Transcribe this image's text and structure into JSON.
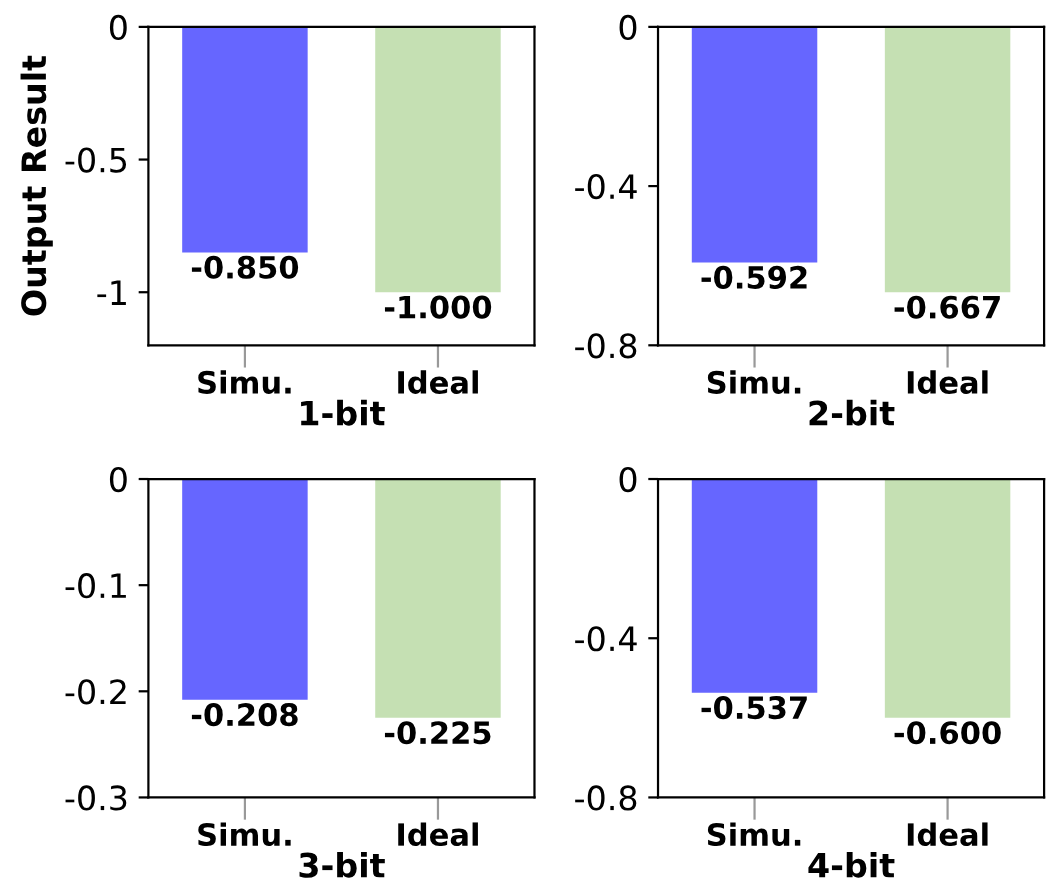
{
  "chart_data": [
    {
      "type": "bar",
      "xlabel": "1-bit",
      "ylabel": "Output Result",
      "categories": [
        "Simu.",
        "Ideal"
      ],
      "values": [
        -0.85,
        -1.0
      ],
      "colors": [
        "#6666ff",
        "#c5e0b3"
      ],
      "value_labels": [
        "-0.850",
        "-1.000"
      ],
      "ylim": [
        -1.2,
        0
      ],
      "yticks": [
        0,
        -0.5,
        -1
      ],
      "grid": false,
      "legend": false
    },
    {
      "type": "bar",
      "xlabel": "2-bit",
      "categories": [
        "Simu.",
        "Ideal"
      ],
      "values": [
        -0.592,
        -0.667
      ],
      "colors": [
        "#6666ff",
        "#c5e0b3"
      ],
      "value_labels": [
        "-0.592",
        "-0.667"
      ],
      "ylim": [
        -0.8,
        0
      ],
      "yticks": [
        0,
        -0.4,
        -0.8
      ],
      "grid": false,
      "legend": false
    },
    {
      "type": "bar",
      "xlabel": "3-bit",
      "categories": [
        "Simu.",
        "Ideal"
      ],
      "values": [
        -0.208,
        -0.225
      ],
      "colors": [
        "#6666ff",
        "#c5e0b3"
      ],
      "value_labels": [
        "-0.208",
        "-0.225"
      ],
      "ylim": [
        -0.3,
        0
      ],
      "yticks": [
        0,
        -0.1,
        -0.2,
        -0.3
      ],
      "grid": false,
      "legend": false
    },
    {
      "type": "bar",
      "xlabel": "4-bit",
      "categories": [
        "Simu.",
        "Ideal"
      ],
      "values": [
        -0.537,
        -0.6
      ],
      "colors": [
        "#6666ff",
        "#c5e0b3"
      ],
      "value_labels": [
        "-0.537",
        "-0.600"
      ],
      "ylim": [
        -0.8,
        0
      ],
      "yticks": [
        0,
        -0.4,
        -0.8
      ],
      "grid": false,
      "legend": false
    }
  ]
}
